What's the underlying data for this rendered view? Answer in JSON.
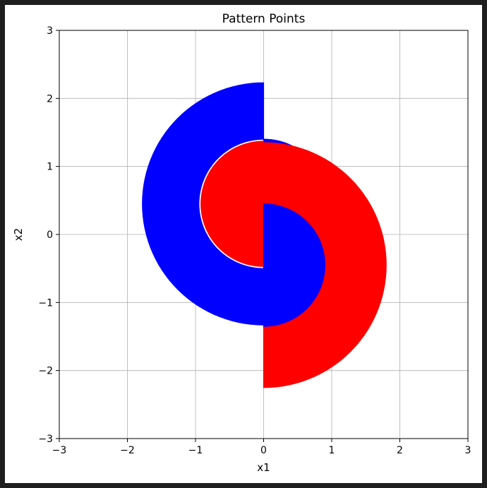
{
  "chart_data": {
    "type": "scatter",
    "title": "Pattern Points",
    "xlabel": "x1",
    "ylabel": "x2",
    "xlim": [
      -3,
      3
    ],
    "ylim": [
      -3,
      3
    ],
    "xticks": [
      -3,
      -2,
      -1,
      0,
      1,
      2,
      3
    ],
    "yticks": [
      -3,
      -2,
      -1,
      0,
      1,
      2,
      3
    ],
    "tick_labels": [
      "−3",
      "−2",
      "−1",
      "0",
      "1",
      "2",
      "3"
    ],
    "grid": true,
    "series": [
      {
        "color": "#0000ff",
        "shape": "half-annulus-pair",
        "regions": [
          {
            "center": [
              0,
              0.45
            ],
            "inner_radius": 0.0,
            "outer_radius": 0.95,
            "angles_deg": [
              -90,
              90
            ]
          },
          {
            "center": [
              0,
              0.45
            ],
            "inner_radius": 0.95,
            "outer_radius": 1.78,
            "angles_deg": [
              90,
              270
            ]
          },
          {
            "center": [
              0,
              -0.45
            ],
            "inner_radius": 0.0,
            "outer_radius": 0.9,
            "angles_deg": [
              -90,
              90
            ]
          }
        ]
      },
      {
        "color": "#ff0000",
        "shape": "half-annulus-pair",
        "regions": [
          {
            "center": [
              0,
              -0.45
            ],
            "inner_radius": 0.9,
            "outer_radius": 1.8,
            "angles_deg": [
              -90,
              90
            ]
          },
          {
            "center": [
              0,
              0.45
            ],
            "inner_radius": 0.0,
            "outer_radius": 0.92,
            "angles_deg": [
              90,
              270
            ]
          }
        ]
      }
    ]
  }
}
